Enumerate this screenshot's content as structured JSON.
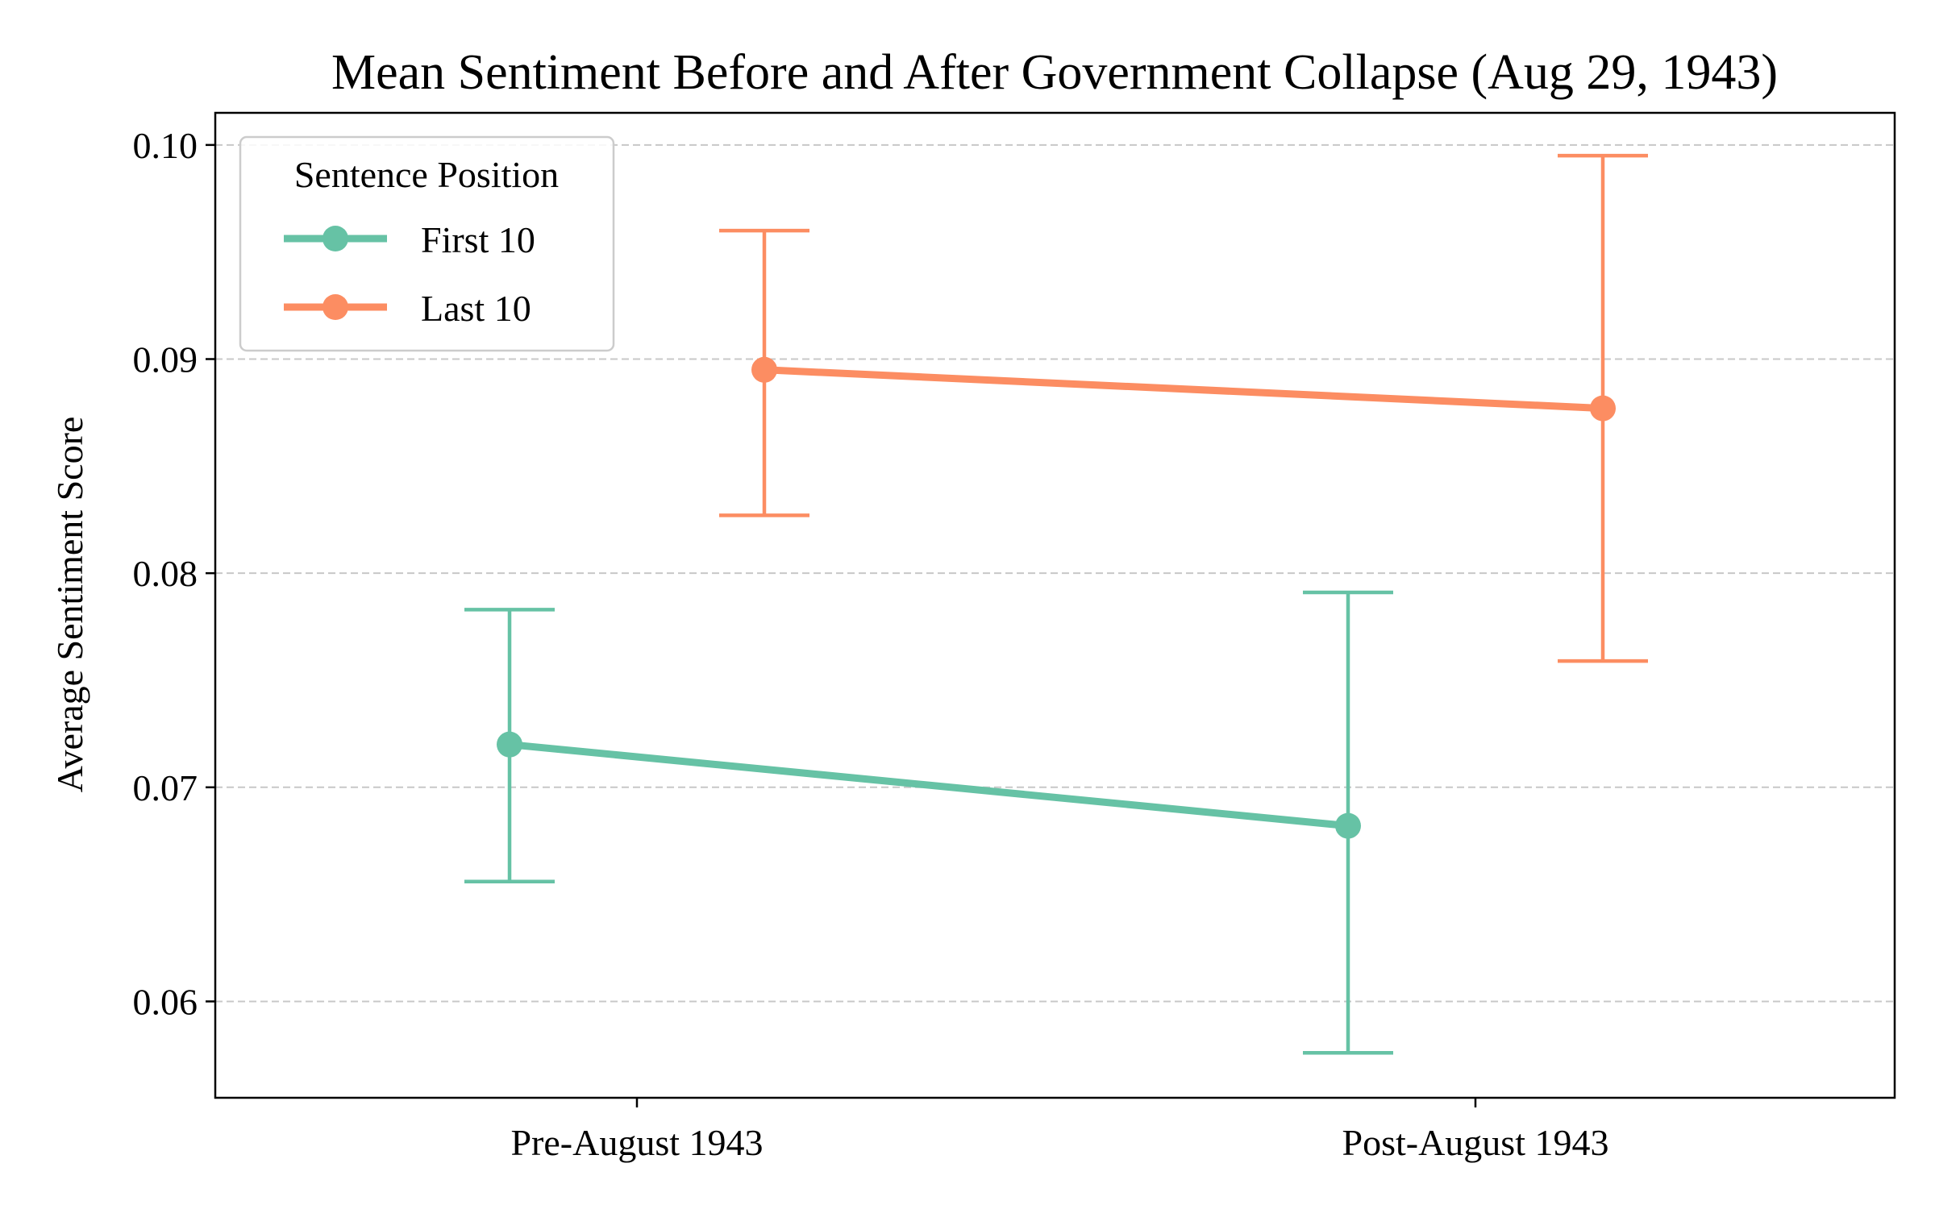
{
  "chart_data": {
    "type": "line",
    "title": "Mean Sentiment Before and After Government Collapse (Aug 29, 1943)",
    "xlabel": "",
    "ylabel": "Average Sentiment Score",
    "categories": [
      "Pre-August 1943",
      "Post-August 1943"
    ],
    "ylim": [
      0.0555,
      0.1015
    ],
    "yticks": [
      "0.06",
      "0.07",
      "0.08",
      "0.09",
      "0.10"
    ],
    "grid": "horizontal dashed",
    "legend": {
      "title": "Sentence Position",
      "placement": "top-left"
    },
    "series": [
      {
        "name": "First 10",
        "color": "#66c2a5",
        "values": [
          0.072,
          0.0682
        ],
        "err_low": [
          0.0656,
          0.0576
        ],
        "err_high": [
          0.0783,
          0.0791
        ]
      },
      {
        "name": "Last 10",
        "color": "#fc8d62",
        "values": [
          0.0895,
          0.0877
        ],
        "err_low": [
          0.0827,
          0.0759
        ],
        "err_high": [
          0.096,
          0.0995
        ]
      }
    ]
  }
}
